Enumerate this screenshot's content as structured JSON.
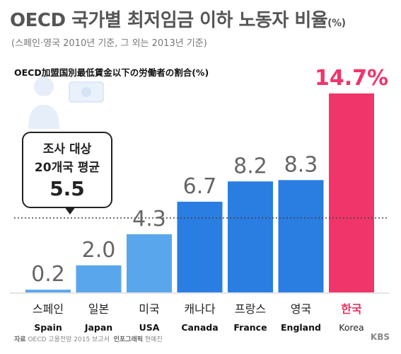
{
  "header": {
    "title": "OECD 국가별 최저임금 이하 노동자 비율",
    "title_unit": "(%)",
    "subtitle": "(스페인·영국 2010년 기준, 그 외는 2013년 기준)",
    "overlay_title": "OECD加盟国別最低賃金以下の労働者の割合(%)"
  },
  "average_box": {
    "line1": "조사 대상",
    "line2": "20개국 평균",
    "value_label": "5.5"
  },
  "footer": {
    "source_label": "자료",
    "source_text": "OECD 고용전망 2015 보고서",
    "credit_label": "인포그래픽",
    "credit_name": "현예진",
    "logo": "KBS"
  },
  "colors": {
    "bar": "#2a7de1",
    "bar_light": "#5aa6ec",
    "highlight": "#f0356b",
    "average_line": "#444444"
  },
  "chart_data": {
    "type": "bar",
    "categories": [
      "스페인",
      "일본",
      "미국",
      "캐나다",
      "프랑스",
      "영국",
      "한국"
    ],
    "categories_en": [
      "Spain",
      "Japan",
      "USA",
      "Canada",
      "France",
      "England",
      "Korea"
    ],
    "values": [
      0.2,
      2.0,
      4.3,
      6.7,
      8.2,
      8.3,
      14.7
    ],
    "value_labels": [
      "0.2",
      "2.0",
      "4.3",
      "6.7",
      "8.2",
      "8.3",
      "14.7%"
    ],
    "highlight_index": 6,
    "average": 5.5,
    "ylim": [
      0,
      14.7
    ],
    "grid": false,
    "legend": "none"
  }
}
